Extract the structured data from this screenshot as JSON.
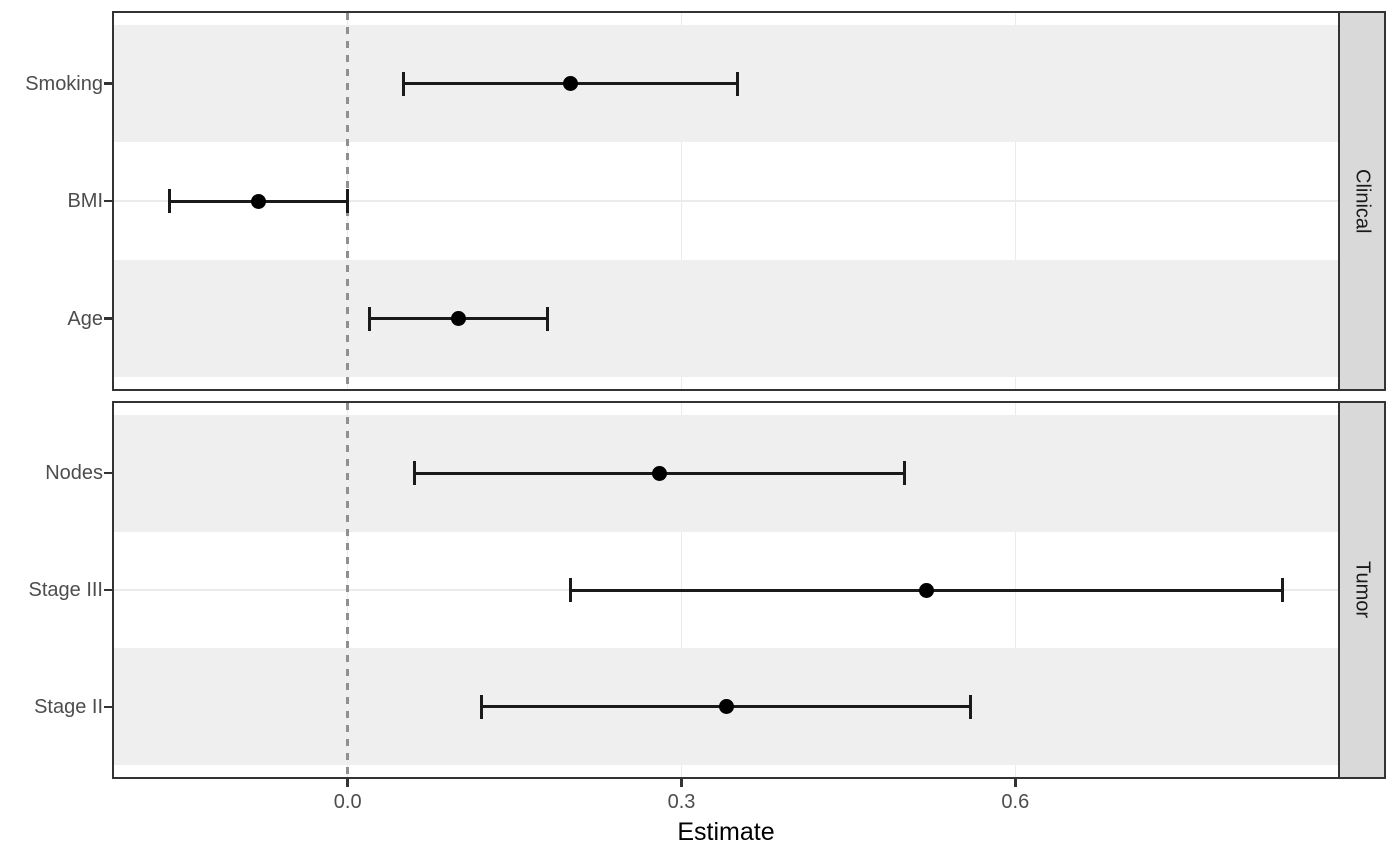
{
  "chart_data": {
    "type": "scatter",
    "subtype": "forest-plot-dot-whisker",
    "title": "",
    "xlabel": "Estimate",
    "x_ticks": [
      0.0,
      0.3,
      0.6
    ],
    "x_tick_labels": [
      "0.0",
      "0.3",
      "0.6"
    ],
    "xlim": [
      -0.21,
      0.89
    ],
    "zero_line": 0,
    "grid": "major-only",
    "legend": "none",
    "facet_label_side": "right",
    "facets": [
      {
        "label": "Clinical",
        "rows": [
          {
            "label": "Smoking",
            "estimate": 0.2,
            "ci": [
              0.05,
              0.35
            ]
          },
          {
            "label": "BMI",
            "estimate": -0.08,
            "ci": [
              -0.16,
              0.0
            ]
          },
          {
            "label": "Age",
            "estimate": 0.1,
            "ci": [
              0.02,
              0.18
            ]
          }
        ]
      },
      {
        "label": "Tumor",
        "rows": [
          {
            "label": "Nodes",
            "estimate": 0.28,
            "ci": [
              0.06,
              0.5
            ]
          },
          {
            "label": "Stage III",
            "estimate": 0.52,
            "ci": [
              0.2,
              0.84
            ]
          },
          {
            "label": "Stage II",
            "estimate": 0.34,
            "ci": [
              0.12,
              0.56
            ]
          }
        ]
      }
    ],
    "colors": {
      "point": "#000000",
      "ci": "#1a1a1a",
      "stripe": "#efefef",
      "strip_bg": "#d9d9d9",
      "strip_text": "#1a1a1a",
      "panel_border": "#333333",
      "grid": "#ebebeb",
      "zero_line": "#909090",
      "axis_text": "#4d4d4d",
      "background": "#ffffff"
    }
  }
}
